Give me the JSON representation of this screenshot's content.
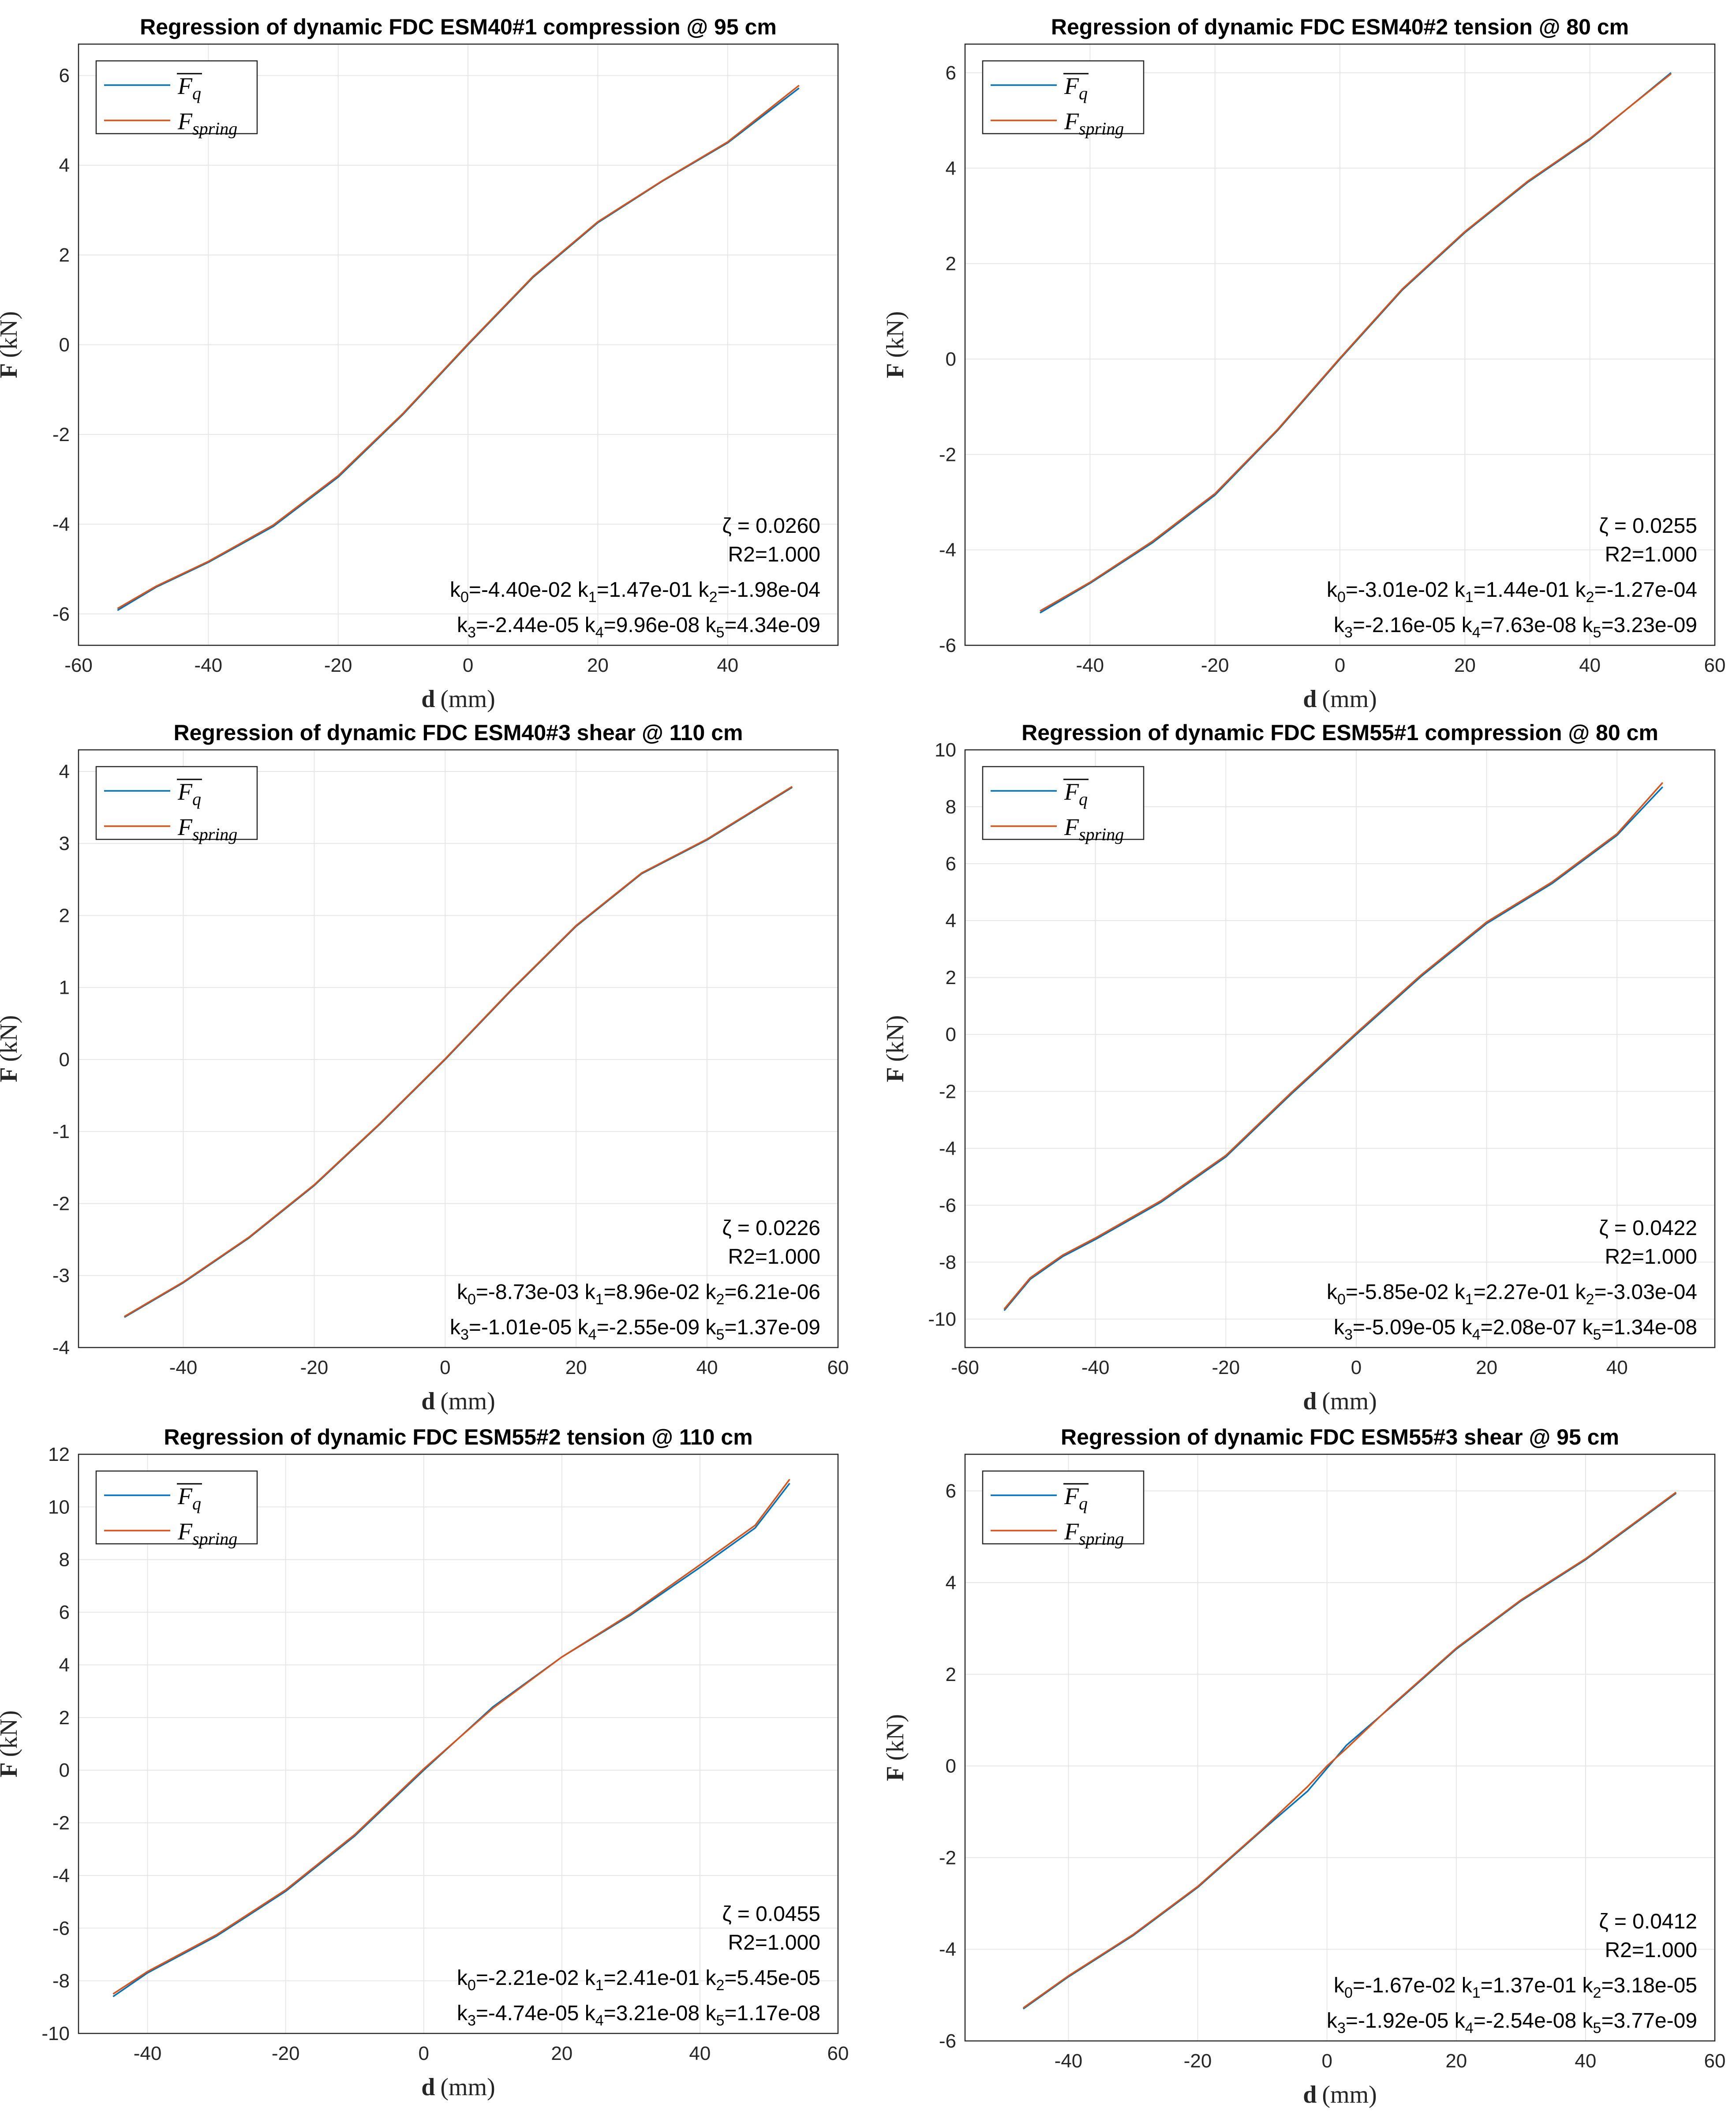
{
  "chart_data": [
    {
      "type": "line",
      "title": "Regression of dynamic FDC ESM40#1 compression @ 95 cm",
      "xlabel_bold": "d",
      "xlabel_unit": "(mm)",
      "ylabel_bold": "F",
      "ylabel_unit": "(kN)",
      "xlim": [
        -60,
        57
      ],
      "ylim": [
        -6.7,
        6.7
      ],
      "xticks": [
        -60,
        -40,
        -20,
        0,
        20,
        40
      ],
      "yticks": [
        -6,
        -4,
        -2,
        0,
        2,
        4,
        6
      ],
      "legend": [
        "F̅q",
        "Fspring"
      ],
      "legend_base": [
        "F",
        "F"
      ],
      "legend_sub": [
        "q",
        "spring"
      ],
      "zeta": "ζ = 0.0260",
      "r2": "R2=1.000",
      "coef_line1": "k0=-4.40e-02 k1=1.47e-01 k2=-1.98e-04",
      "coef_line2": "k3=-2.44e-05 k4=9.96e-08 k5=4.34e-09",
      "k": {
        "k0": "-4.40e-02",
        "k1": "1.47e-01",
        "k2": "-1.98e-04",
        "k3": "-2.44e-05",
        "k4": "9.96e-08",
        "k5": "4.34e-09"
      },
      "series": [
        {
          "name": "Fq (mean)",
          "color": "#0072BD",
          "x": [
            -54,
            -48,
            -40,
            -30,
            -20,
            -10,
            0,
            10,
            20,
            30,
            40,
            51
          ],
          "y": [
            -5.92,
            -5.4,
            -4.85,
            -4.05,
            -2.95,
            -1.55,
            0,
            1.5,
            2.72,
            3.65,
            4.5,
            5.72
          ]
        },
        {
          "name": "Fspring",
          "color": "#D95319",
          "x": [
            -54,
            -48,
            -40,
            -30,
            -20,
            -10,
            0,
            10,
            20,
            30,
            40,
            51
          ],
          "y": [
            -5.88,
            -5.38,
            -4.83,
            -4.02,
            -2.92,
            -1.53,
            0.02,
            1.52,
            2.74,
            3.66,
            4.52,
            5.78
          ]
        }
      ]
    },
    {
      "type": "line",
      "title": "Regression of dynamic FDC ESM40#2 tension @ 80 cm",
      "xlabel_bold": "d",
      "xlabel_unit": "(mm)",
      "ylabel_bold": "F",
      "ylabel_unit": "(kN)",
      "xlim": [
        -60,
        60
      ],
      "ylim": [
        -6,
        6.6
      ],
      "xticks": [
        -40,
        -20,
        0,
        20,
        40,
        60
      ],
      "yticks": [
        -6,
        -4,
        -2,
        0,
        2,
        4,
        6
      ],
      "legend": [
        "F̅q",
        "Fspring"
      ],
      "legend_base": [
        "F",
        "F"
      ],
      "legend_sub": [
        "q",
        "spring"
      ],
      "zeta": "ζ = 0.0255",
      "r2": "R2=1.000",
      "coef_line1": "k0=-3.01e-02 k1=1.44e-01 k2=-1.27e-04",
      "coef_line2": "k3=-2.16e-05 k4=7.63e-08 k5=3.23e-09",
      "k": {
        "k0": "-3.01e-02",
        "k1": "1.44e-01",
        "k2": "-1.27e-04",
        "k3": "-2.16e-05",
        "k4": "7.63e-08",
        "k5": "3.23e-09"
      },
      "series": [
        {
          "name": "Fq (mean)",
          "color": "#0072BD",
          "x": [
            -48,
            -40,
            -30,
            -20,
            -10,
            0,
            10,
            20,
            30,
            40,
            53
          ],
          "y": [
            -5.32,
            -4.7,
            -3.85,
            -2.85,
            -1.5,
            0,
            1.45,
            2.65,
            3.7,
            4.6,
            6.0
          ]
        },
        {
          "name": "Fspring",
          "color": "#D95319",
          "x": [
            -48,
            -40,
            -30,
            -20,
            -10,
            0,
            10,
            20,
            30,
            40,
            53
          ],
          "y": [
            -5.28,
            -4.68,
            -3.82,
            -2.82,
            -1.48,
            0.02,
            1.47,
            2.67,
            3.72,
            4.62,
            5.98
          ]
        }
      ]
    },
    {
      "type": "line",
      "title": "Regression of dynamic FDC ESM40#3 shear @ 110 cm",
      "xlabel_bold": "d",
      "xlabel_unit": "(mm)",
      "ylabel_bold": "F",
      "ylabel_unit": "(kN)",
      "xlim": [
        -56,
        60
      ],
      "ylim": [
        -4,
        4.3
      ],
      "xticks": [
        -40,
        -20,
        0,
        20,
        40,
        60
      ],
      "yticks": [
        -4,
        -3,
        -2,
        -1,
        0,
        1,
        2,
        3,
        4
      ],
      "legend": [
        "F̅q",
        "Fspring"
      ],
      "legend_base": [
        "F",
        "F"
      ],
      "legend_sub": [
        "q",
        "spring"
      ],
      "zeta": "ζ = 0.0226",
      "r2": "R2=1.000",
      "coef_line1": "k0=-8.73e-03 k1=8.96e-02 k2=6.21e-06",
      "coef_line2": "k3=-1.01e-05 k4=-2.55e-09 k5=1.37e-09",
      "k": {
        "k0": "-8.73e-03",
        "k1": "8.96e-02",
        "k2": "6.21e-06",
        "k3": "-1.01e-05",
        "k4": "-2.55e-09",
        "k5": "1.37e-09"
      },
      "series": [
        {
          "name": "Fq (mean)",
          "color": "#0072BD",
          "x": [
            -49,
            -40,
            -30,
            -20,
            -10,
            0,
            10,
            20,
            30,
            40,
            53
          ],
          "y": [
            -3.58,
            -3.1,
            -2.48,
            -1.75,
            -0.9,
            0,
            0.95,
            1.85,
            2.58,
            3.05,
            3.78
          ]
        },
        {
          "name": "Fspring",
          "color": "#D95319",
          "x": [
            -49,
            -40,
            -30,
            -20,
            -10,
            0,
            10,
            20,
            30,
            40,
            53
          ],
          "y": [
            -3.57,
            -3.09,
            -2.47,
            -1.74,
            -0.89,
            0.01,
            0.96,
            1.86,
            2.59,
            3.06,
            3.79
          ]
        }
      ]
    },
    {
      "type": "line",
      "title": "Regression of dynamic FDC ESM55#1 compression @ 80 cm",
      "xlabel_bold": "d",
      "xlabel_unit": "(mm)",
      "ylabel_bold": "F",
      "ylabel_unit": "(kN)",
      "xlim": [
        -60,
        55
      ],
      "ylim": [
        -11,
        10
      ],
      "xticks": [
        -60,
        -40,
        -20,
        0,
        20,
        40
      ],
      "yticks": [
        -10,
        -8,
        -6,
        -4,
        -2,
        0,
        2,
        4,
        6,
        8,
        10
      ],
      "legend": [
        "F̅q",
        "Fspring"
      ],
      "legend_base": [
        "F",
        "F"
      ],
      "legend_sub": [
        "q",
        "spring"
      ],
      "zeta": "ζ = 0.0422",
      "r2": "R2=1.000",
      "coef_line1": "k0=-5.85e-02 k1=2.27e-01 k2=-3.03e-04",
      "coef_line2": "k3=-5.09e-05 k4=2.08e-07 k5=1.34e-08",
      "k": {
        "k0": "-5.85e-02",
        "k1": "2.27e-01",
        "k2": "-3.03e-04",
        "k3": "-5.09e-05",
        "k4": "2.08e-07",
        "k5": "1.34e-08"
      },
      "series": [
        {
          "name": "Fq (mean)",
          "color": "#0072BD",
          "x": [
            -54,
            -50,
            -45,
            -40,
            -30,
            -20,
            -10,
            0,
            10,
            20,
            30,
            40,
            47
          ],
          "y": [
            -9.7,
            -8.6,
            -7.8,
            -7.2,
            -5.9,
            -4.3,
            -2.1,
            0,
            2.05,
            3.9,
            5.3,
            7.0,
            8.7
          ]
        },
        {
          "name": "Fspring",
          "color": "#D95319",
          "x": [
            -54,
            -50,
            -45,
            -40,
            -30,
            -20,
            -10,
            0,
            10,
            20,
            30,
            40,
            47
          ],
          "y": [
            -9.65,
            -8.55,
            -7.75,
            -7.15,
            -5.85,
            -4.25,
            -2.05,
            0.05,
            2.1,
            3.95,
            5.35,
            7.05,
            8.85
          ]
        }
      ]
    },
    {
      "type": "line",
      "title": "Regression of dynamic FDC ESM55#2 tension @ 110 cm",
      "xlabel_bold": "d",
      "xlabel_unit": "(mm)",
      "ylabel_bold": "F",
      "ylabel_unit": "(kN)",
      "xlim": [
        -50,
        60
      ],
      "ylim": [
        -10,
        12
      ],
      "xticks": [
        -40,
        -20,
        0,
        20,
        40,
        60
      ],
      "yticks": [
        -10,
        -8,
        -6,
        -4,
        -2,
        0,
        2,
        4,
        6,
        8,
        10,
        12
      ],
      "legend": [
        "F̅q",
        "Fspring"
      ],
      "legend_base": [
        "F",
        "F"
      ],
      "legend_sub": [
        "q",
        "spring"
      ],
      "zeta": "ζ = 0.0455",
      "r2": "R2=1.000",
      "coef_line1": "k0=-2.21e-02 k1=2.41e-01 k2=5.45e-05",
      "coef_line2": "k3=-4.74e-05 k4=3.21e-08 k5=1.17e-08",
      "k": {
        "k0": "-2.21e-02",
        "k1": "2.41e-01",
        "k2": "5.45e-05",
        "k3": "-4.74e-05",
        "k4": "3.21e-08",
        "k5": "1.17e-08"
      },
      "series": [
        {
          "name": "Fq (mean)",
          "color": "#0072BD",
          "x": [
            -45,
            -40,
            -30,
            -20,
            -10,
            0,
            10,
            20,
            30,
            40,
            48,
            53
          ],
          "y": [
            -8.6,
            -7.7,
            -6.3,
            -4.6,
            -2.5,
            0,
            2.4,
            4.3,
            5.9,
            7.7,
            9.2,
            10.9
          ]
        },
        {
          "name": "Fspring",
          "color": "#D95319",
          "x": [
            -45,
            -40,
            -30,
            -20,
            -10,
            0,
            10,
            20,
            30,
            40,
            48,
            53
          ],
          "y": [
            -8.5,
            -7.65,
            -6.25,
            -4.55,
            -2.45,
            0.05,
            2.35,
            4.3,
            5.95,
            7.8,
            9.3,
            11.05
          ]
        }
      ]
    },
    {
      "type": "line",
      "title": "Regression of dynamic FDC ESM55#3 shear @ 95 cm",
      "xlabel_bold": "d",
      "xlabel_unit": "(mm)",
      "ylabel_bold": "F",
      "ylabel_unit": "(kN)",
      "xlim": [
        -56,
        60
      ],
      "ylim": [
        -6,
        6.8
      ],
      "xticks": [
        -40,
        -20,
        0,
        20,
        40,
        60
      ],
      "yticks": [
        -6,
        -4,
        -2,
        0,
        2,
        4,
        6
      ],
      "legend": [
        "F̅q",
        "Fspring"
      ],
      "legend_base": [
        "F",
        "F"
      ],
      "legend_sub": [
        "q",
        "spring"
      ],
      "zeta": "ζ = 0.0412",
      "r2": "R2=1.000",
      "coef_line1": "k0=-1.67e-02 k1=1.37e-01 k2=3.18e-05",
      "coef_line2": "k3=-1.92e-05 k4=-2.54e-08 k5=3.77e-09",
      "k": {
        "k0": "-1.67e-02",
        "k1": "1.37e-01",
        "k2": "3.18e-05",
        "k3": "-1.92e-05",
        "k4": "-2.54e-08",
        "k5": "3.77e-09"
      },
      "series": [
        {
          "name": "Fq (mean)",
          "color": "#0072BD",
          "x": [
            -47,
            -40,
            -30,
            -20,
            -10,
            -3,
            0,
            3,
            10,
            20,
            30,
            40,
            54
          ],
          "y": [
            -5.3,
            -4.6,
            -3.7,
            -2.65,
            -1.4,
            -0.55,
            -0.05,
            0.45,
            1.3,
            2.55,
            3.6,
            4.5,
            5.95
          ]
        },
        {
          "name": "Fspring",
          "color": "#D95319",
          "x": [
            -47,
            -40,
            -30,
            -20,
            -10,
            -3,
            0,
            3,
            10,
            20,
            30,
            40,
            54
          ],
          "y": [
            -5.28,
            -4.58,
            -3.68,
            -2.63,
            -1.38,
            -0.45,
            0.0,
            0.38,
            1.32,
            2.57,
            3.62,
            4.52,
            5.97
          ]
        }
      ]
    }
  ]
}
